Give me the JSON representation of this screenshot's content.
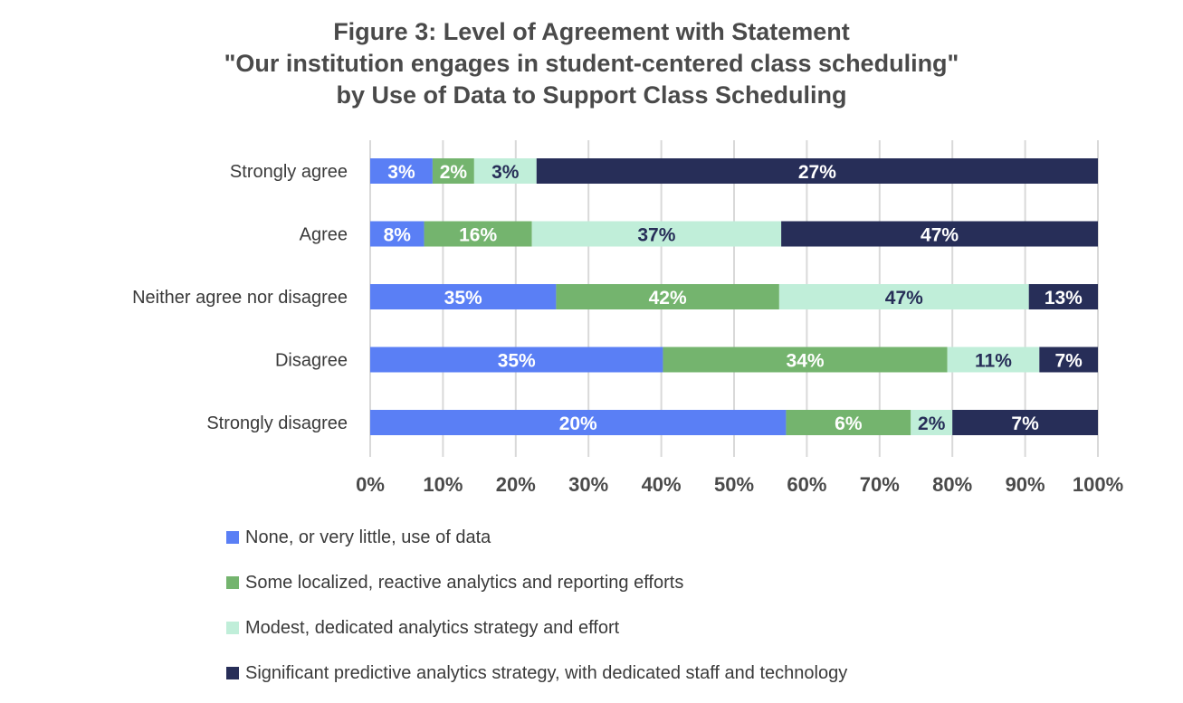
{
  "chart_data": {
    "type": "bar",
    "orientation": "horizontal",
    "stacked": "100%",
    "title": [
      "Figure 3: Level of Agreement with Statement",
      "\"Our institution engages in student-centered class scheduling\"",
      "by Use of Data to Support Class Scheduling"
    ],
    "categories": [
      "Strongly agree",
      "Agree",
      "Neither agree nor disagree",
      "Disagree",
      "Strongly disagree"
    ],
    "series": [
      {
        "name": "None, or very little, use of data",
        "color": "#5a7ff5",
        "label_color": "#ffffff",
        "values": [
          3,
          8,
          35,
          35,
          20
        ]
      },
      {
        "name": "Some localized, reactive analytics and reporting efforts",
        "color": "#74b46e",
        "label_color": "#ffffff",
        "values": [
          2,
          16,
          42,
          34,
          6
        ]
      },
      {
        "name": "Modest, dedicated analytics strategy and effort",
        "color": "#c0eed9",
        "label_color": "#272e58",
        "values": [
          3,
          37,
          47,
          11,
          2
        ]
      },
      {
        "name": "Significant predictive analytics strategy, with dedicated staff and technology",
        "color": "#272e58",
        "label_color": "#ffffff",
        "values": [
          27,
          47,
          13,
          7,
          7
        ]
      }
    ],
    "value_suffix": "%",
    "xticks": [
      "0%",
      "10%",
      "20%",
      "30%",
      "40%",
      "50%",
      "60%",
      "70%",
      "80%",
      "90%",
      "100%"
    ],
    "xlim": [
      0,
      100
    ],
    "grid": "vertical",
    "legend_position": "bottom-left"
  }
}
